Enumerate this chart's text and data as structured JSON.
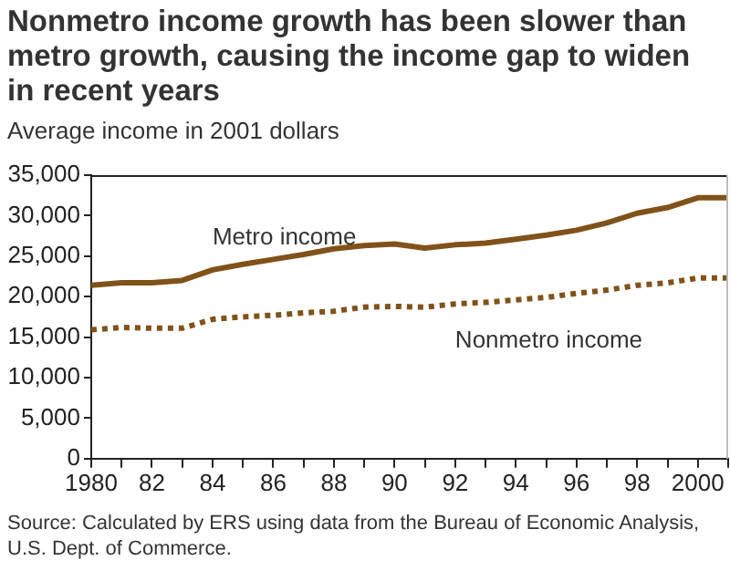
{
  "chart_data": {
    "type": "line",
    "title": "Nonmetro income growth has been slower than metro growth, causing the income gap to widen in recent years",
    "ylabel": "Average income in 2001 dollars",
    "x": [
      1980,
      1981,
      1982,
      1983,
      1984,
      1985,
      1986,
      1987,
      1988,
      1989,
      1990,
      1991,
      1992,
      1993,
      1994,
      1995,
      1996,
      1997,
      1998,
      1999,
      2000,
      2001
    ],
    "series": [
      {
        "name": "Metro income",
        "color": "#80521a",
        "line_style": "solid",
        "values": [
          21400,
          21700,
          21700,
          22000,
          23300,
          24000,
          24600,
          25200,
          25900,
          26300,
          26500,
          26000,
          26400,
          26600,
          27100,
          27600,
          28200,
          29100,
          30300,
          31000,
          32200,
          32200
        ]
      },
      {
        "name": "Nonmetro income",
        "color": "#80521a",
        "line_style": "dotted",
        "values": [
          15900,
          16200,
          16100,
          16100,
          17200,
          17500,
          17700,
          18000,
          18200,
          18700,
          18800,
          18700,
          19100,
          19300,
          19600,
          19900,
          20400,
          20800,
          21400,
          21700,
          22300,
          22300
        ]
      }
    ],
    "xlim": [
      1980,
      2001
    ],
    "xticks": [
      1980,
      {
        "value": 1981,
        "label": null
      },
      {
        "value": 1982,
        "label": "82"
      },
      {
        "value": 1983,
        "label": null
      },
      {
        "value": 1984,
        "label": "84"
      },
      {
        "value": 1985,
        "label": null
      },
      {
        "value": 1986,
        "label": "86"
      },
      {
        "value": 1987,
        "label": null
      },
      {
        "value": 1988,
        "label": "88"
      },
      {
        "value": 1989,
        "label": null
      },
      {
        "value": 1990,
        "label": "90"
      },
      {
        "value": 1991,
        "label": null
      },
      {
        "value": 1992,
        "label": "92"
      },
      {
        "value": 1993,
        "label": null
      },
      {
        "value": 1994,
        "label": "94"
      },
      {
        "value": 1995,
        "label": null
      },
      {
        "value": 1996,
        "label": "96"
      },
      {
        "value": 1997,
        "label": null
      },
      {
        "value": 1998,
        "label": "98"
      },
      {
        "value": 1999,
        "label": null
      },
      {
        "value": 2000,
        "label": "2000"
      },
      {
        "value": 2001,
        "label": null
      }
    ],
    "ylim": [
      0,
      35000
    ],
    "yticks": [
      {
        "value": 0,
        "label": "0"
      },
      {
        "value": 5000,
        "label": "5,000"
      },
      {
        "value": 10000,
        "label": "10,000"
      },
      {
        "value": 15000,
        "label": "15,000"
      },
      {
        "value": 20000,
        "label": "20,000"
      },
      {
        "value": 25000,
        "label": "25,000"
      },
      {
        "value": 30000,
        "label": "30,000"
      },
      {
        "value": 35000,
        "label": "35,000"
      }
    ],
    "grid": false,
    "legend": false,
    "marker": "none",
    "annotations": [
      "Source: Calculated by ERS using data from the Bureau of Economic Analysis, U.S. Dept. of Commerce."
    ]
  }
}
